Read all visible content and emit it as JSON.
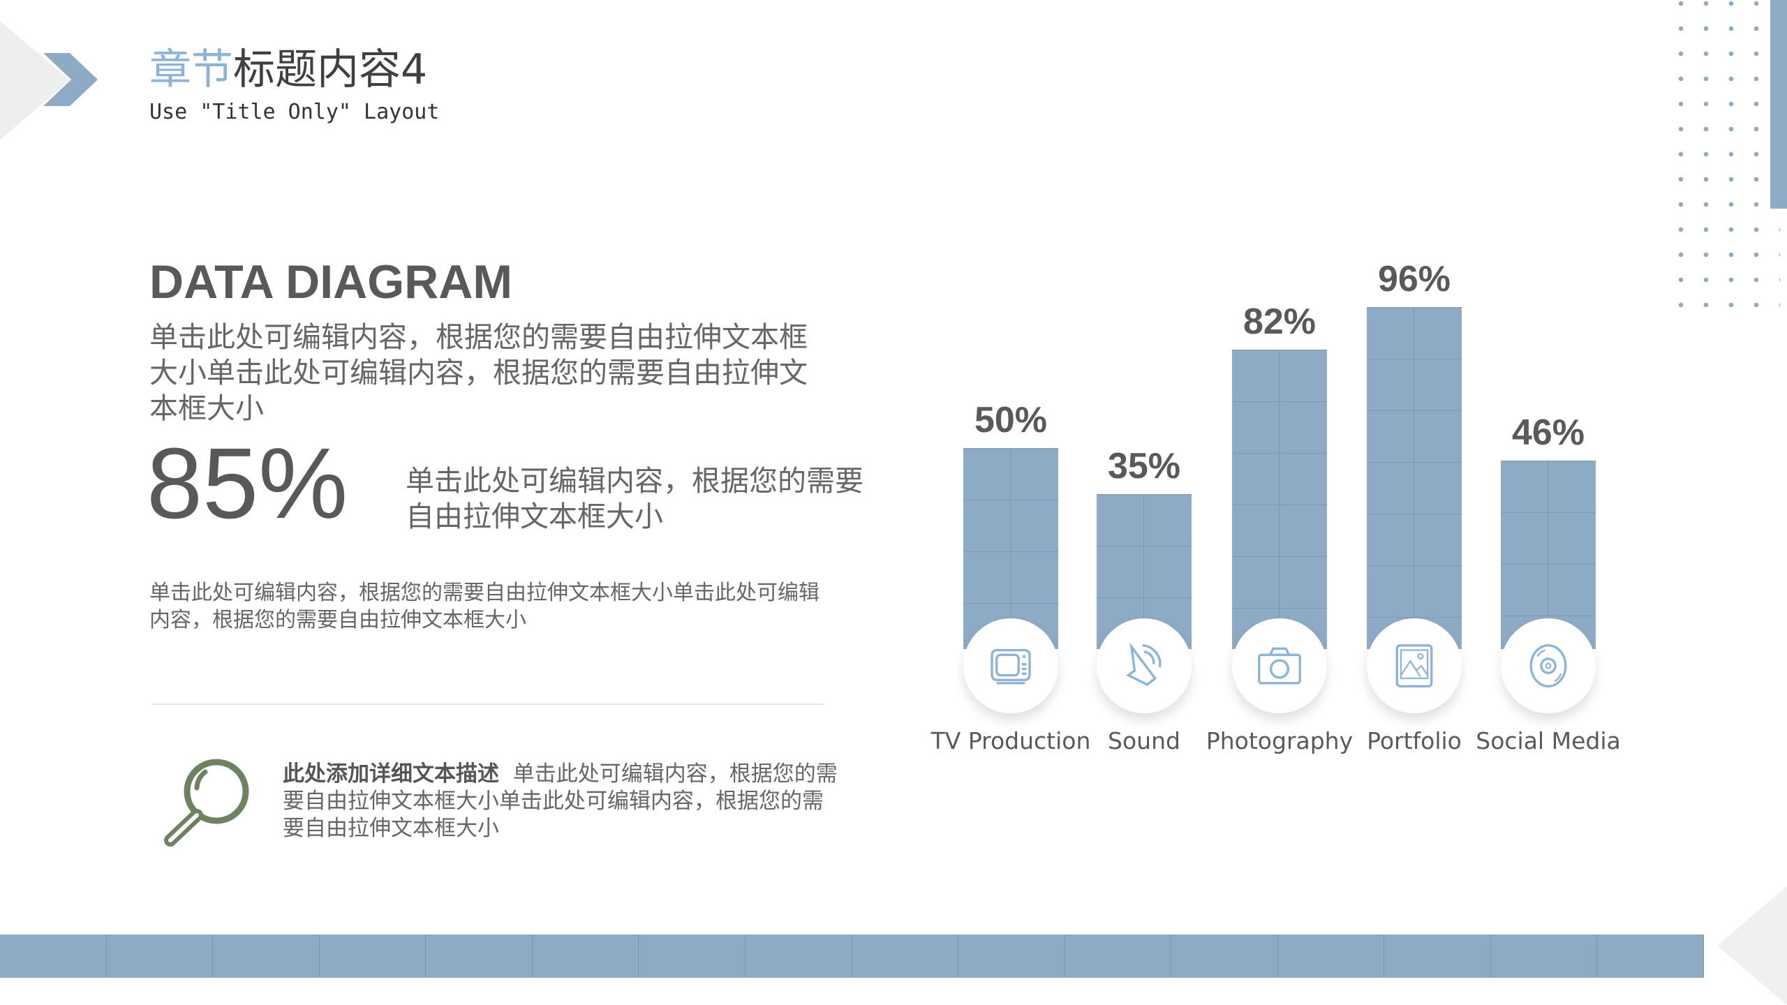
{
  "header": {
    "title_highlight": "章节",
    "title_rest": "标题内容4",
    "subtitle": "Use \"Title Only\" Layout"
  },
  "left": {
    "heading": "DATA DIAGRAM",
    "paragraph1": "单击此处可编辑内容，根据您的需要自由拉伸文本框大小单击此处可编辑内容，根据您的需要自由拉伸文本框大小",
    "big_value": "85%",
    "paragraph2": "单击此处可编辑内容，根据您的需要自由拉伸文本框大小",
    "paragraph3": "单击此处可编辑内容，根据您的需要自由拉伸文本框大小单击此处可编辑内容，根据您的需要自由拉伸文本框大小",
    "desc_bold": "此处添加详细文本描述",
    "desc_text": "单击此处可编辑内容，根据您的需要自由拉伸文本框大小单击此处可编辑内容，根据您的需要自由拉伸文本框大小",
    "desc_icon": "magnifier-icon"
  },
  "colors": {
    "accent": "#8eabc6",
    "icon": "#8db3d9",
    "magnifier": "#6e8262"
  },
  "chart_data": {
    "type": "bar",
    "categories": [
      "TV Production",
      "Sound",
      "Photography",
      "Portfolio",
      "Social Media"
    ],
    "values": [
      50,
      35,
      82,
      96,
      46
    ],
    "labels": [
      "50%",
      "35%",
      "82%",
      "96%",
      "46%"
    ],
    "icons": [
      "tv-icon",
      "speaker-icon",
      "camera-icon",
      "picture-icon",
      "disc-icon"
    ],
    "ylim": [
      0,
      100
    ]
  }
}
